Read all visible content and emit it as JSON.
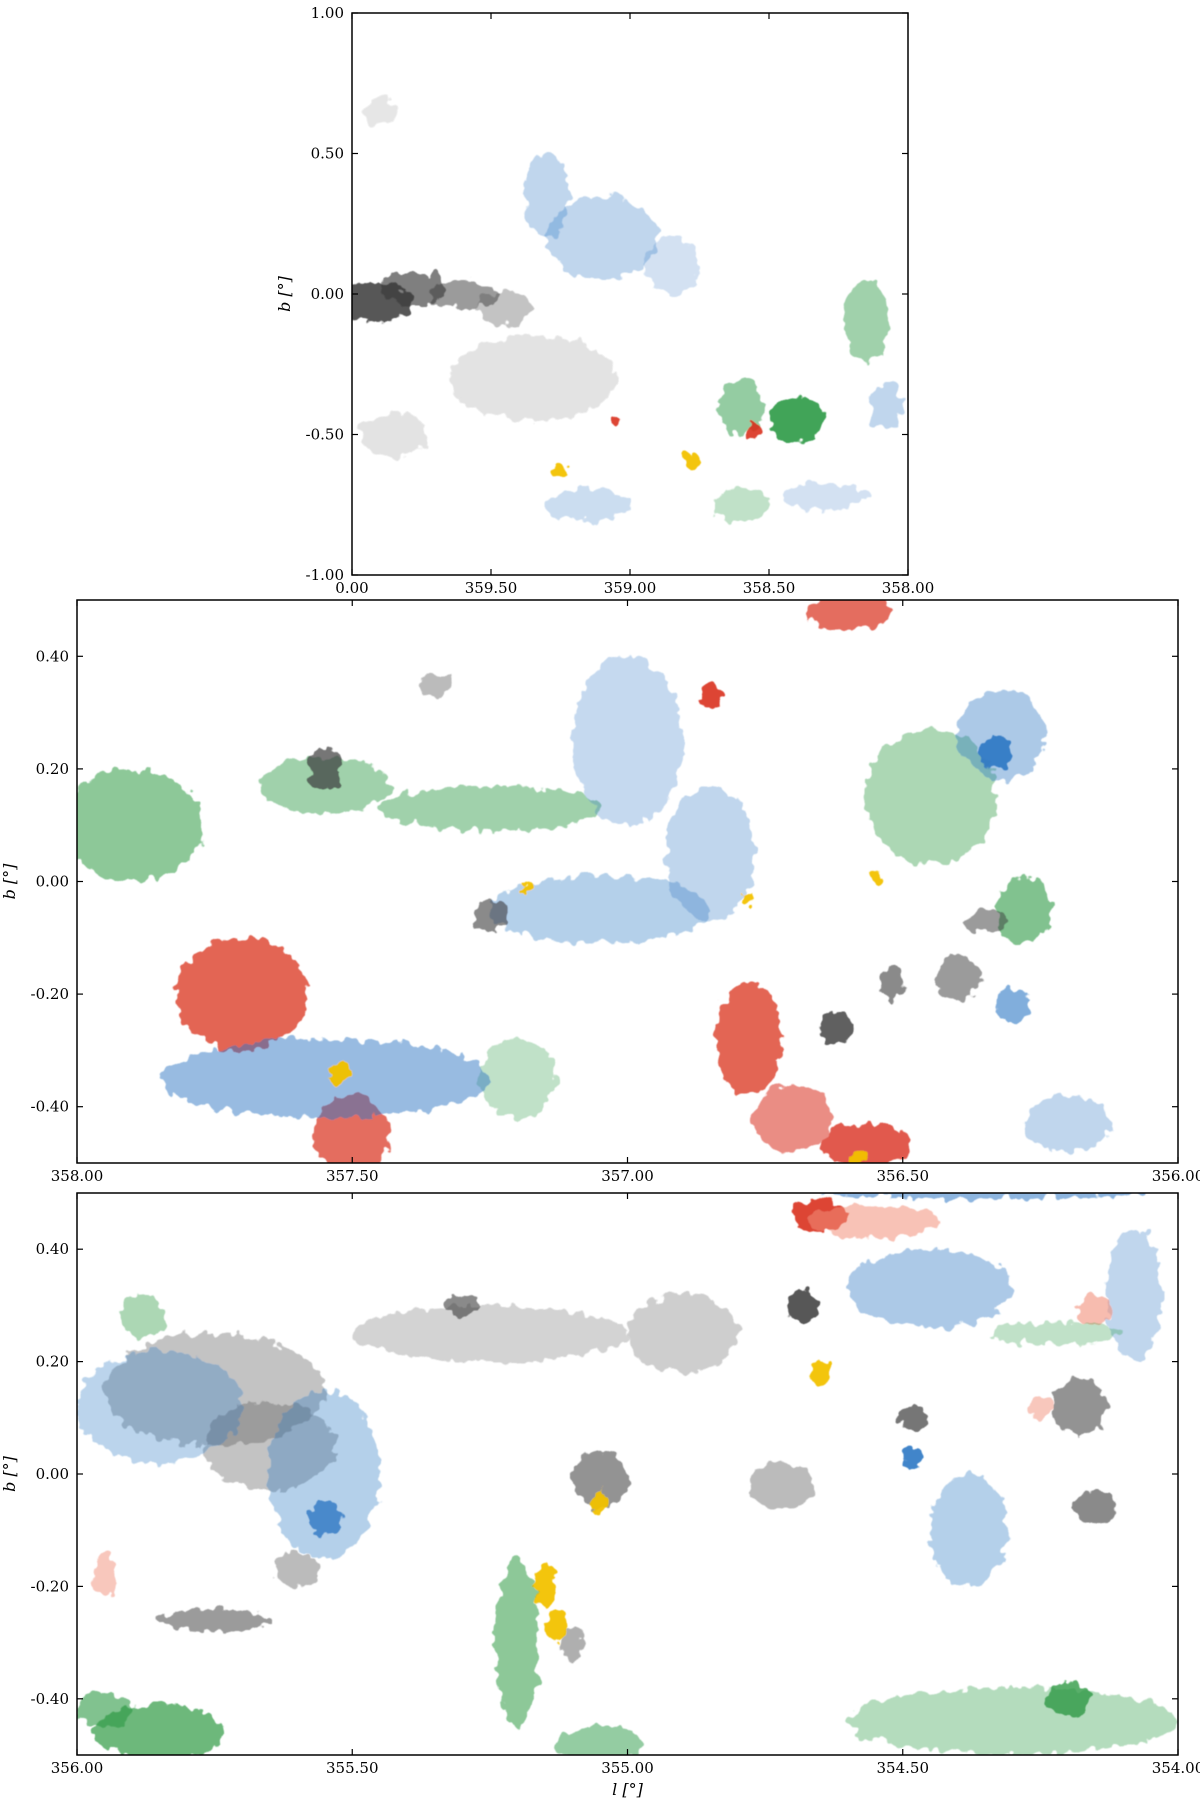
{
  "colors": {
    "gray": "#3a3a3a",
    "blue": "#2f78c4",
    "green": "#2e9a45",
    "red": "#d9301e",
    "salmon": "#f2907a",
    "yellow": "#f2c200"
  },
  "chart_data": [
    {
      "type": "heatmap",
      "name": "panel-1",
      "xlabel": "",
      "ylabel": "b [°]",
      "xlim": [
        0.0,
        358.0
      ],
      "ylim": [
        -1.0,
        1.0
      ],
      "x_ticks": [
        "0.00",
        "359.50",
        "359.00",
        "358.50",
        "358.00"
      ],
      "x_tick_values": [
        0.0,
        359.5,
        359.0,
        358.5,
        358.0
      ],
      "y_ticks": [
        "1.00",
        "0.50",
        "0.00",
        "-0.50",
        "-1.00"
      ],
      "y_tick_values": [
        1.0,
        0.5,
        0.0,
        -0.5,
        -1.0
      ],
      "blobs": [
        {
          "l": 359.92,
          "b": -0.03,
          "rl": 0.14,
          "rb": 0.07,
          "c": "gray",
          "o": 0.85
        },
        {
          "l": 359.78,
          "b": 0.02,
          "rl": 0.12,
          "rb": 0.06,
          "c": "gray",
          "o": 0.65
        },
        {
          "l": 359.6,
          "b": 0.0,
          "rl": 0.12,
          "rb": 0.05,
          "c": "gray",
          "o": 0.5
        },
        {
          "l": 359.45,
          "b": -0.05,
          "rl": 0.1,
          "rb": 0.06,
          "c": "gray",
          "o": 0.3
        },
        {
          "l": 359.35,
          "b": -0.3,
          "rl": 0.3,
          "rb": 0.15,
          "c": "gray",
          "o": 0.15
        },
        {
          "l": 359.85,
          "b": -0.5,
          "rl": 0.12,
          "rb": 0.08,
          "c": "gray",
          "o": 0.15
        },
        {
          "l": 359.9,
          "b": 0.65,
          "rl": 0.06,
          "rb": 0.05,
          "c": "gray",
          "o": 0.12
        },
        {
          "l": 359.1,
          "b": 0.2,
          "rl": 0.2,
          "rb": 0.15,
          "c": "blue",
          "o": 0.3
        },
        {
          "l": 359.3,
          "b": 0.35,
          "rl": 0.08,
          "rb": 0.15,
          "c": "blue",
          "o": 0.3
        },
        {
          "l": 358.85,
          "b": 0.1,
          "rl": 0.1,
          "rb": 0.1,
          "c": "blue",
          "o": 0.22
        },
        {
          "l": 359.15,
          "b": -0.75,
          "rl": 0.15,
          "rb": 0.06,
          "c": "blue",
          "o": 0.25
        },
        {
          "l": 358.3,
          "b": -0.72,
          "rl": 0.15,
          "rb": 0.05,
          "c": "blue",
          "o": 0.22
        },
        {
          "l": 358.08,
          "b": -0.4,
          "rl": 0.06,
          "rb": 0.08,
          "c": "blue",
          "o": 0.3
        },
        {
          "l": 358.4,
          "b": -0.45,
          "rl": 0.1,
          "rb": 0.08,
          "c": "green",
          "o": 0.9
        },
        {
          "l": 358.15,
          "b": -0.1,
          "rl": 0.08,
          "rb": 0.15,
          "c": "green",
          "o": 0.45
        },
        {
          "l": 358.6,
          "b": -0.4,
          "rl": 0.08,
          "rb": 0.1,
          "c": "green",
          "o": 0.5
        },
        {
          "l": 358.6,
          "b": -0.75,
          "rl": 0.1,
          "rb": 0.06,
          "c": "green",
          "o": 0.3
        },
        {
          "l": 358.55,
          "b": -0.49,
          "rl": 0.02,
          "rb": 0.03,
          "c": "red",
          "o": 0.9
        },
        {
          "l": 359.05,
          "b": -0.45,
          "rl": 0.015,
          "rb": 0.02,
          "c": "red",
          "o": 0.9
        },
        {
          "l": 358.78,
          "b": -0.6,
          "rl": 0.025,
          "rb": 0.04,
          "c": "yellow",
          "o": 0.95
        },
        {
          "l": 359.25,
          "b": -0.63,
          "rl": 0.03,
          "rb": 0.02,
          "c": "yellow",
          "o": 0.95
        }
      ]
    },
    {
      "type": "heatmap",
      "name": "panel-2",
      "xlabel": "",
      "ylabel": "b [°]",
      "xlim": [
        358.0,
        356.0
      ],
      "ylim": [
        -0.5,
        0.5
      ],
      "x_ticks": [
        "358.00",
        "357.50",
        "357.00",
        "356.50",
        "356.00"
      ],
      "x_tick_values": [
        358.0,
        357.5,
        357.0,
        356.5,
        356.0
      ],
      "y_ticks": [
        "0.40",
        "0.20",
        "0.00",
        "-0.20",
        "-0.40"
      ],
      "y_tick_values": [
        0.4,
        0.2,
        0.0,
        -0.2,
        -0.4
      ],
      "blobs": [
        {
          "l": 357.9,
          "b": 0.1,
          "rl": 0.13,
          "rb": 0.1,
          "c": "green",
          "o": 0.55
        },
        {
          "l": 357.55,
          "b": 0.17,
          "rl": 0.12,
          "rb": 0.05,
          "c": "green",
          "o": 0.45
        },
        {
          "l": 357.25,
          "b": 0.13,
          "rl": 0.2,
          "rb": 0.04,
          "c": "green",
          "o": 0.45
        },
        {
          "l": 356.45,
          "b": 0.15,
          "rl": 0.12,
          "rb": 0.12,
          "c": "green",
          "o": 0.4
        },
        {
          "l": 356.28,
          "b": -0.05,
          "rl": 0.05,
          "rb": 0.06,
          "c": "green",
          "o": 0.6
        },
        {
          "l": 357.2,
          "b": -0.35,
          "rl": 0.07,
          "rb": 0.07,
          "c": "green",
          "o": 0.3
        },
        {
          "l": 357.7,
          "b": -0.2,
          "rl": 0.12,
          "rb": 0.1,
          "c": "red",
          "o": 0.75
        },
        {
          "l": 357.5,
          "b": -0.45,
          "rl": 0.07,
          "rb": 0.07,
          "c": "red",
          "o": 0.7
        },
        {
          "l": 356.78,
          "b": -0.28,
          "rl": 0.06,
          "rb": 0.1,
          "c": "red",
          "o": 0.75
        },
        {
          "l": 356.7,
          "b": -0.42,
          "rl": 0.07,
          "rb": 0.06,
          "c": "red",
          "o": 0.55
        },
        {
          "l": 356.57,
          "b": -0.47,
          "rl": 0.08,
          "rb": 0.04,
          "c": "red",
          "o": 0.8
        },
        {
          "l": 356.6,
          "b": 0.48,
          "rl": 0.08,
          "rb": 0.03,
          "c": "red",
          "o": 0.7
        },
        {
          "l": 356.85,
          "b": 0.33,
          "rl": 0.02,
          "rb": 0.02,
          "c": "red",
          "o": 0.9
        },
        {
          "l": 357.55,
          "b": -0.35,
          "rl": 0.3,
          "rb": 0.07,
          "c": "blue",
          "o": 0.5
        },
        {
          "l": 357.0,
          "b": 0.25,
          "rl": 0.1,
          "rb": 0.15,
          "c": "blue",
          "o": 0.28
        },
        {
          "l": 357.05,
          "b": -0.05,
          "rl": 0.2,
          "rb": 0.06,
          "c": "blue",
          "o": 0.35
        },
        {
          "l": 356.85,
          "b": 0.05,
          "rl": 0.08,
          "rb": 0.12,
          "c": "blue",
          "o": 0.3
        },
        {
          "l": 356.32,
          "b": 0.26,
          "rl": 0.08,
          "rb": 0.08,
          "c": "blue",
          "o": 0.4
        },
        {
          "l": 356.33,
          "b": 0.23,
          "rl": 0.03,
          "rb": 0.03,
          "c": "blue",
          "o": 0.9
        },
        {
          "l": 356.2,
          "b": -0.43,
          "rl": 0.08,
          "rb": 0.05,
          "c": "blue",
          "o": 0.3
        },
        {
          "l": 356.3,
          "b": -0.22,
          "rl": 0.03,
          "rb": 0.03,
          "c": "blue",
          "o": 0.6
        },
        {
          "l": 357.55,
          "b": 0.2,
          "rl": 0.03,
          "rb": 0.04,
          "c": "gray",
          "o": 0.7
        },
        {
          "l": 357.35,
          "b": 0.35,
          "rl": 0.03,
          "rb": 0.02,
          "c": "gray",
          "o": 0.35
        },
        {
          "l": 357.25,
          "b": -0.06,
          "rl": 0.03,
          "rb": 0.03,
          "c": "gray",
          "o": 0.6
        },
        {
          "l": 356.62,
          "b": -0.26,
          "rl": 0.03,
          "rb": 0.03,
          "c": "gray",
          "o": 0.8
        },
        {
          "l": 356.52,
          "b": -0.18,
          "rl": 0.02,
          "rb": 0.03,
          "c": "gray",
          "o": 0.6
        },
        {
          "l": 356.4,
          "b": -0.17,
          "rl": 0.04,
          "rb": 0.04,
          "c": "gray",
          "o": 0.5
        },
        {
          "l": 356.35,
          "b": -0.07,
          "rl": 0.04,
          "rb": 0.02,
          "c": "gray",
          "o": 0.5
        },
        {
          "l": 357.52,
          "b": -0.34,
          "rl": 0.02,
          "rb": 0.02,
          "c": "yellow",
          "o": 0.95
        },
        {
          "l": 356.58,
          "b": -0.49,
          "rl": 0.02,
          "rb": 0.01,
          "c": "yellow",
          "o": 0.95
        },
        {
          "l": 357.18,
          "b": -0.01,
          "rl": 0.01,
          "rb": 0.01,
          "c": "yellow",
          "o": 0.95
        },
        {
          "l": 356.78,
          "b": -0.03,
          "rl": 0.01,
          "rb": 0.015,
          "c": "yellow",
          "o": 0.95
        },
        {
          "l": 356.55,
          "b": 0.01,
          "rl": 0.01,
          "rb": 0.01,
          "c": "yellow",
          "o": 0.95
        }
      ]
    },
    {
      "type": "heatmap",
      "name": "panel-3",
      "xlabel": "l [°]",
      "ylabel": "b [°]",
      "xlim": [
        356.0,
        354.0
      ],
      "ylim": [
        -0.5,
        0.5
      ],
      "x_ticks": [
        "356.00",
        "355.50",
        "355.00",
        "354.50",
        "354.00"
      ],
      "x_tick_values": [
        356.0,
        355.5,
        355.0,
        354.5,
        354.0
      ],
      "y_ticks": [
        "0.40",
        "0.20",
        "0.00",
        "-0.20",
        "-0.40"
      ],
      "y_tick_values": [
        0.4,
        0.2,
        0.0,
        -0.2,
        -0.4
      ],
      "blobs": [
        {
          "l": 355.75,
          "b": 0.15,
          "rl": 0.2,
          "rb": 0.1,
          "c": "gray",
          "o": 0.3
        },
        {
          "l": 355.65,
          "b": 0.05,
          "rl": 0.12,
          "rb": 0.08,
          "c": "gray",
          "o": 0.3
        },
        {
          "l": 355.25,
          "b": 0.25,
          "rl": 0.25,
          "rb": 0.05,
          "c": "gray",
          "o": 0.22
        },
        {
          "l": 355.05,
          "b": -0.01,
          "rl": 0.05,
          "rb": 0.05,
          "c": "gray",
          "o": 0.55
        },
        {
          "l": 354.68,
          "b": 0.3,
          "rl": 0.03,
          "rb": 0.03,
          "c": "gray",
          "o": 0.85
        },
        {
          "l": 354.9,
          "b": 0.25,
          "rl": 0.1,
          "rb": 0.07,
          "c": "gray",
          "o": 0.25
        },
        {
          "l": 354.72,
          "b": -0.02,
          "rl": 0.06,
          "rb": 0.04,
          "c": "gray",
          "o": 0.35
        },
        {
          "l": 354.48,
          "b": 0.1,
          "rl": 0.03,
          "rb": 0.02,
          "c": "gray",
          "o": 0.7
        },
        {
          "l": 354.18,
          "b": 0.12,
          "rl": 0.05,
          "rb": 0.05,
          "c": "gray",
          "o": 0.55
        },
        {
          "l": 354.15,
          "b": -0.06,
          "rl": 0.04,
          "rb": 0.03,
          "c": "gray",
          "o": 0.6
        },
        {
          "l": 355.75,
          "b": -0.26,
          "rl": 0.1,
          "rb": 0.02,
          "c": "gray",
          "o": 0.5
        },
        {
          "l": 355.6,
          "b": -0.17,
          "rl": 0.04,
          "rb": 0.03,
          "c": "gray",
          "o": 0.35
        },
        {
          "l": 355.3,
          "b": 0.3,
          "rl": 0.03,
          "rb": 0.02,
          "c": "gray",
          "o": 0.6
        },
        {
          "l": 355.1,
          "b": -0.3,
          "rl": 0.02,
          "rb": 0.03,
          "c": "gray",
          "o": 0.4
        },
        {
          "l": 355.85,
          "b": 0.12,
          "rl": 0.15,
          "rb": 0.1,
          "c": "blue",
          "o": 0.32
        },
        {
          "l": 355.55,
          "b": 0.0,
          "rl": 0.1,
          "rb": 0.15,
          "c": "blue",
          "o": 0.35
        },
        {
          "l": 355.55,
          "b": -0.08,
          "rl": 0.03,
          "rb": 0.03,
          "c": "blue",
          "o": 0.8
        },
        {
          "l": 354.45,
          "b": 0.33,
          "rl": 0.15,
          "rb": 0.07,
          "c": "blue",
          "o": 0.4
        },
        {
          "l": 354.38,
          "b": -0.1,
          "rl": 0.07,
          "rb": 0.1,
          "c": "blue",
          "o": 0.35
        },
        {
          "l": 354.08,
          "b": 0.32,
          "rl": 0.05,
          "rb": 0.12,
          "c": "blue",
          "o": 0.3
        },
        {
          "l": 354.48,
          "b": 0.03,
          "rl": 0.02,
          "rb": 0.02,
          "c": "blue",
          "o": 0.9
        },
        {
          "l": 354.35,
          "b": 0.5,
          "rl": 0.3,
          "rb": 0.01,
          "c": "blue",
          "o": 0.55
        },
        {
          "l": 354.65,
          "b": 0.46,
          "rl": 0.05,
          "rb": 0.03,
          "c": "red",
          "o": 0.9
        },
        {
          "l": 354.55,
          "b": 0.45,
          "rl": 0.12,
          "rb": 0.03,
          "c": "salmon",
          "o": 0.55
        },
        {
          "l": 354.15,
          "b": 0.29,
          "rl": 0.03,
          "rb": 0.03,
          "c": "salmon",
          "o": 0.6
        },
        {
          "l": 354.25,
          "b": 0.12,
          "rl": 0.02,
          "rb": 0.02,
          "c": "salmon",
          "o": 0.5
        },
        {
          "l": 355.95,
          "b": -0.18,
          "rl": 0.02,
          "rb": 0.04,
          "c": "salmon",
          "o": 0.5
        },
        {
          "l": 355.15,
          "b": -0.2,
          "rl": 0.02,
          "rb": 0.04,
          "c": "yellow",
          "o": 0.95
        },
        {
          "l": 355.13,
          "b": -0.27,
          "rl": 0.02,
          "rb": 0.03,
          "c": "yellow",
          "o": 0.95
        },
        {
          "l": 354.65,
          "b": 0.18,
          "rl": 0.02,
          "rb": 0.02,
          "c": "yellow",
          "o": 0.95
        },
        {
          "l": 355.05,
          "b": -0.05,
          "rl": 0.01,
          "rb": 0.02,
          "c": "yellow",
          "o": 0.95
        },
        {
          "l": 355.85,
          "b": -0.46,
          "rl": 0.12,
          "rb": 0.05,
          "c": "green",
          "o": 0.7
        },
        {
          "l": 355.95,
          "b": -0.42,
          "rl": 0.05,
          "rb": 0.03,
          "c": "green",
          "o": 0.6
        },
        {
          "l": 355.2,
          "b": -0.3,
          "rl": 0.04,
          "rb": 0.15,
          "c": "green",
          "o": 0.55
        },
        {
          "l": 355.05,
          "b": -0.48,
          "rl": 0.08,
          "rb": 0.03,
          "c": "green",
          "o": 0.5
        },
        {
          "l": 354.3,
          "b": -0.44,
          "rl": 0.3,
          "rb": 0.06,
          "c": "green",
          "o": 0.35
        },
        {
          "l": 354.2,
          "b": -0.4,
          "rl": 0.04,
          "rb": 0.03,
          "c": "green",
          "o": 0.8
        },
        {
          "l": 355.88,
          "b": 0.28,
          "rl": 0.04,
          "rb": 0.04,
          "c": "green",
          "o": 0.4
        },
        {
          "l": 354.22,
          "b": 0.25,
          "rl": 0.12,
          "rb": 0.02,
          "c": "green",
          "o": 0.3
        }
      ]
    }
  ]
}
